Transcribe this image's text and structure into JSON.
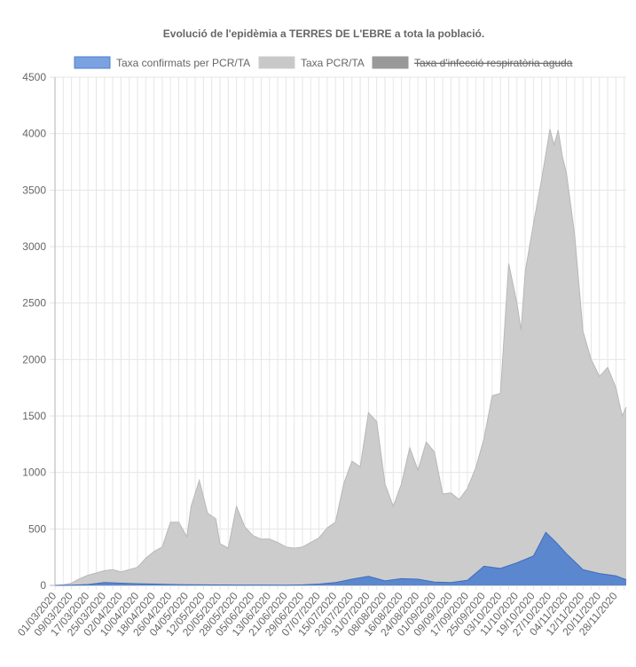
{
  "chart_data": {
    "type": "area",
    "title": "Evolució de l'epidèmia a TERRES DE L'EBRE a tota la població.",
    "xlabel": "",
    "ylabel": "",
    "ylim": [
      0,
      4500
    ],
    "yticks": [
      0,
      500,
      1000,
      1500,
      2000,
      2500,
      3000,
      3500,
      4000,
      4500
    ],
    "x_range": [
      "01/03/2020",
      "03/12/2020"
    ],
    "x_tick_labels": [
      "01/03/2020",
      "09/03/2020",
      "17/03/2020",
      "25/03/2020",
      "02/04/2020",
      "10/04/2020",
      "18/04/2020",
      "26/04/2020",
      "04/05/2020",
      "12/05/2020",
      "20/05/2020",
      "28/05/2020",
      "05/06/2020",
      "13/06/2020",
      "21/06/2020",
      "29/06/2020",
      "07/07/2020",
      "15/07/2020",
      "23/07/2020",
      "31/07/2020",
      "08/08/2020",
      "16/08/2020",
      "24/08/2020",
      "01/09/2020",
      "09/09/2020",
      "17/09/2020",
      "25/09/2020",
      "03/10/2020",
      "11/10/2020",
      "19/10/2020",
      "27/10/2020",
      "04/11/2020",
      "12/11/2020",
      "20/11/2020",
      "28/11/2020"
    ],
    "grid": true,
    "legend_position": "top",
    "series": [
      {
        "name": "Taxa confirmats per PCR/TA",
        "color": "#4f7fce",
        "legend_color": "#7ba2e0",
        "hidden": false,
        "points": [
          [
            "01/03/2020",
            0
          ],
          [
            "09/03/2020",
            2
          ],
          [
            "17/03/2020",
            8
          ],
          [
            "25/03/2020",
            25
          ],
          [
            "02/04/2020",
            20
          ],
          [
            "10/04/2020",
            15
          ],
          [
            "18/04/2020",
            12
          ],
          [
            "26/04/2020",
            8
          ],
          [
            "04/05/2020",
            6
          ],
          [
            "12/05/2020",
            5
          ],
          [
            "20/05/2020",
            4
          ],
          [
            "28/05/2020",
            3
          ],
          [
            "05/06/2020",
            3
          ],
          [
            "13/06/2020",
            3
          ],
          [
            "21/06/2020",
            2
          ],
          [
            "29/06/2020",
            5
          ],
          [
            "07/07/2020",
            12
          ],
          [
            "15/07/2020",
            25
          ],
          [
            "23/07/2020",
            55
          ],
          [
            "31/07/2020",
            80
          ],
          [
            "08/08/2020",
            40
          ],
          [
            "16/08/2020",
            60
          ],
          [
            "24/08/2020",
            55
          ],
          [
            "01/09/2020",
            30
          ],
          [
            "09/09/2020",
            25
          ],
          [
            "17/09/2020",
            45
          ],
          [
            "25/09/2020",
            170
          ],
          [
            "03/10/2020",
            150
          ],
          [
            "11/10/2020",
            200
          ],
          [
            "19/10/2020",
            260
          ],
          [
            "25/10/2020",
            470
          ],
          [
            "30/10/2020",
            380
          ],
          [
            "04/11/2020",
            280
          ],
          [
            "12/11/2020",
            140
          ],
          [
            "20/11/2020",
            105
          ],
          [
            "28/11/2020",
            85
          ],
          [
            "03/12/2020",
            50
          ]
        ]
      },
      {
        "name": "Taxa PCR/TA",
        "color": "#cccccc",
        "legend_color": "#c8c8c8",
        "hidden": false,
        "points": [
          [
            "01/03/2020",
            0
          ],
          [
            "05/03/2020",
            5
          ],
          [
            "09/03/2020",
            20
          ],
          [
            "13/03/2020",
            60
          ],
          [
            "17/03/2020",
            90
          ],
          [
            "21/03/2020",
            110
          ],
          [
            "25/03/2020",
            130
          ],
          [
            "29/03/2020",
            140
          ],
          [
            "02/04/2020",
            120
          ],
          [
            "06/04/2020",
            140
          ],
          [
            "10/04/2020",
            160
          ],
          [
            "14/04/2020",
            240
          ],
          [
            "18/04/2020",
            300
          ],
          [
            "22/04/2020",
            340
          ],
          [
            "26/04/2020",
            560
          ],
          [
            "30/04/2020",
            560
          ],
          [
            "04/05/2020",
            430
          ],
          [
            "06/05/2020",
            700
          ],
          [
            "10/05/2020",
            930
          ],
          [
            "14/05/2020",
            640
          ],
          [
            "18/05/2020",
            590
          ],
          [
            "20/05/2020",
            370
          ],
          [
            "24/05/2020",
            330
          ],
          [
            "28/05/2020",
            700
          ],
          [
            "01/06/2020",
            520
          ],
          [
            "05/06/2020",
            440
          ],
          [
            "09/06/2020",
            410
          ],
          [
            "13/06/2020",
            410
          ],
          [
            "17/06/2020",
            380
          ],
          [
            "21/06/2020",
            340
          ],
          [
            "25/06/2020",
            330
          ],
          [
            "29/06/2020",
            340
          ],
          [
            "03/07/2020",
            380
          ],
          [
            "07/07/2020",
            420
          ],
          [
            "11/07/2020",
            510
          ],
          [
            "15/07/2020",
            560
          ],
          [
            "19/07/2020",
            900
          ],
          [
            "23/07/2020",
            1100
          ],
          [
            "27/07/2020",
            1050
          ],
          [
            "31/07/2020",
            1530
          ],
          [
            "04/08/2020",
            1450
          ],
          [
            "08/08/2020",
            900
          ],
          [
            "12/08/2020",
            700
          ],
          [
            "16/08/2020",
            900
          ],
          [
            "20/08/2020",
            1220
          ],
          [
            "24/08/2020",
            1020
          ],
          [
            "28/08/2020",
            1270
          ],
          [
            "01/09/2020",
            1180
          ],
          [
            "05/09/2020",
            810
          ],
          [
            "09/09/2020",
            820
          ],
          [
            "13/09/2020",
            760
          ],
          [
            "17/09/2020",
            860
          ],
          [
            "21/09/2020",
            1040
          ],
          [
            "25/09/2020",
            1300
          ],
          [
            "29/09/2020",
            1680
          ],
          [
            "03/10/2020",
            1700
          ],
          [
            "07/10/2020",
            2850
          ],
          [
            "11/10/2020",
            2500
          ],
          [
            "13/10/2020",
            2260
          ],
          [
            "15/10/2020",
            2780
          ],
          [
            "19/10/2020",
            3200
          ],
          [
            "23/10/2020",
            3600
          ],
          [
            "27/10/2020",
            4040
          ],
          [
            "29/10/2020",
            3900
          ],
          [
            "31/10/2020",
            4030
          ],
          [
            "02/11/2020",
            3800
          ],
          [
            "04/11/2020",
            3650
          ],
          [
            "08/11/2020",
            3100
          ],
          [
            "12/11/2020",
            2250
          ],
          [
            "16/11/2020",
            2000
          ],
          [
            "20/11/2020",
            1850
          ],
          [
            "24/11/2020",
            1930
          ],
          [
            "28/11/2020",
            1750
          ],
          [
            "01/12/2020",
            1500
          ],
          [
            "03/12/2020",
            1580
          ]
        ]
      },
      {
        "name": "Taxa d'infecció respiratòria aguda",
        "color": "#999999",
        "legend_color": "#999999",
        "hidden": true,
        "points": []
      }
    ]
  }
}
